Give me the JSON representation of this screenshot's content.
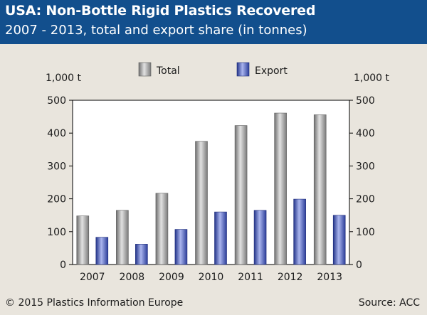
{
  "header": {
    "title": "USA: Non-Bottle Rigid Plastics Recovered",
    "subtitle": "2007 - 2013, total and export share (in tonnes)"
  },
  "footer": {
    "copyright": "© 2015 Plastics Information Europe",
    "source": "Source: ACC"
  },
  "colors": {
    "header_bg": "#124f8d",
    "background": "#e9e5dd",
    "total": "#8a8a8a",
    "export": "#3d52b0"
  },
  "chart_data": {
    "type": "bar",
    "categories": [
      "2007",
      "2008",
      "2009",
      "2010",
      "2011",
      "2012",
      "2013"
    ],
    "series": [
      {
        "name": "Total",
        "values": [
          148,
          165,
          217,
          375,
          423,
          461,
          456
        ]
      },
      {
        "name": "Export",
        "values": [
          83,
          62,
          107,
          160,
          165,
          199,
          150
        ]
      }
    ],
    "ylabel_left": "1,000 t",
    "ylabel_right": "1,000 t",
    "ylim": [
      0,
      500
    ],
    "yticks": [
      "0",
      "100",
      "200",
      "300",
      "400",
      "500"
    ],
    "grid": false,
    "legend": "top-center"
  }
}
